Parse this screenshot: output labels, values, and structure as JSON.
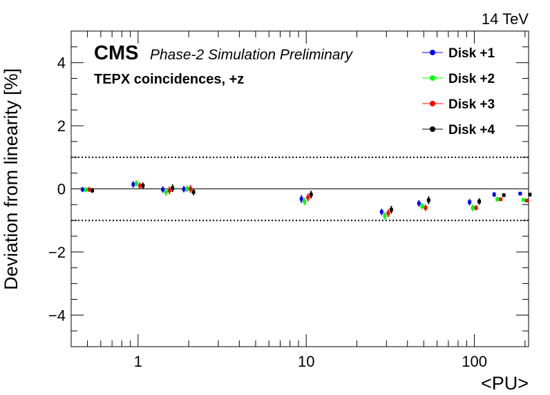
{
  "chart_data": {
    "type": "scatter",
    "energy_label": "14 TeV",
    "experiment": "CMS",
    "status": "Phase-2 Simulation Preliminary",
    "subtitle": "TEPX coincidences, +z",
    "xlabel": "<PU>",
    "ylabel": "Deviation from linearity [%]",
    "xscale": "log",
    "xlim": [
      0.4,
      210
    ],
    "ylim": [
      -5,
      5
    ],
    "xticks": [
      1,
      10,
      100
    ],
    "xtick_labels": [
      "1",
      "10",
      "100"
    ],
    "yticks": [
      -4,
      -2,
      0,
      2,
      4
    ],
    "ytick_labels": [
      "−4",
      "−2",
      "0",
      "2",
      "4"
    ],
    "reference_lines": [
      {
        "y": 1,
        "style": "dotted"
      },
      {
        "y": 0,
        "style": "solid"
      },
      {
        "y": -1,
        "style": "dotted"
      }
    ],
    "grid": false,
    "legend_position": "top-right",
    "x": [
      0.5,
      1,
      1.5,
      2,
      10,
      30,
      50,
      100,
      140,
      200
    ],
    "series": [
      {
        "name": "Disk +1",
        "color": "#0000ff",
        "y": [
          -0.02,
          0.14,
          -0.02,
          -0.01,
          -0.32,
          -0.73,
          -0.46,
          -0.42,
          -0.18,
          -0.15
        ],
        "err": [
          0.08,
          0.1,
          0.1,
          0.1,
          0.12,
          0.1,
          0.1,
          0.1,
          0.08,
          0.06
        ]
      },
      {
        "name": "Disk +2",
        "color": "#00ff00",
        "y": [
          -0.03,
          0.17,
          -0.1,
          0.0,
          -0.4,
          -0.86,
          -0.55,
          -0.6,
          -0.33,
          -0.35
        ],
        "err": [
          0.08,
          0.1,
          0.12,
          0.1,
          0.12,
          0.12,
          0.1,
          0.1,
          0.08,
          0.06
        ]
      },
      {
        "name": "Disk +3",
        "color": "#ff0000",
        "y": [
          -0.02,
          0.1,
          -0.05,
          0.0,
          -0.27,
          -0.77,
          -0.6,
          -0.6,
          -0.33,
          -0.37
        ],
        "err": [
          0.08,
          0.1,
          0.12,
          0.12,
          0.12,
          0.12,
          0.1,
          0.08,
          0.06,
          0.06
        ]
      },
      {
        "name": "Disk +4",
        "color": "#000000",
        "y": [
          -0.05,
          0.1,
          0.02,
          -0.1,
          -0.18,
          -0.66,
          -0.36,
          -0.4,
          -0.2,
          -0.18
        ],
        "err": [
          0.08,
          0.1,
          0.12,
          0.1,
          0.12,
          0.12,
          0.12,
          0.1,
          0.06,
          0.06
        ]
      }
    ]
  }
}
